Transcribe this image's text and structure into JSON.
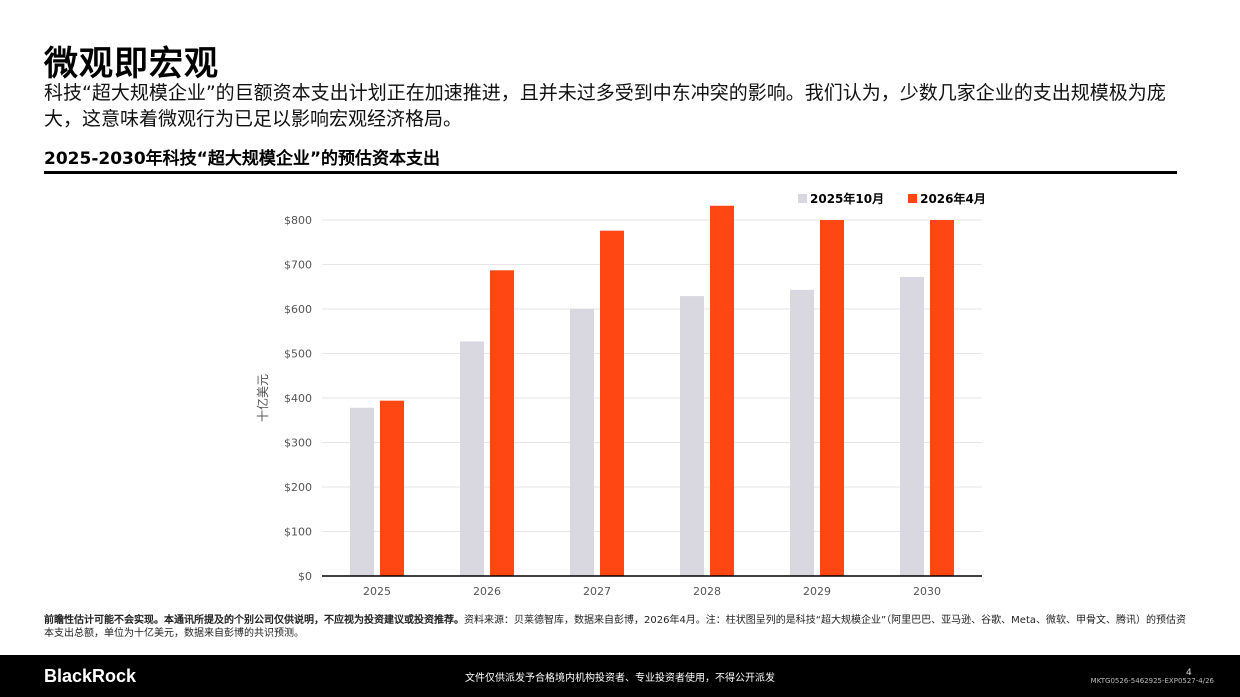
{
  "header": {
    "title": "微观即宏观",
    "lede": "科技“超大规模企业”的巨额资本支出计划正在加速推进，且并未过多受到中东冲突的影响。我们认为，少数几家企业的支出规模极为庞大，这意味着微观行为已足以影响宏观经济格局。",
    "chart_title": "2025-2030年科技“超大规模企业”的预估资本支出"
  },
  "colors": {
    "series_1": "#d9d7df",
    "series_2": "#ff4713",
    "axis": "#000000",
    "grid": "#e6e6e6",
    "tick_text": "#555555"
  },
  "chart_data": {
    "type": "bar",
    "categories": [
      "2025",
      "2026",
      "2027",
      "2028",
      "2029",
      "2030"
    ],
    "series": [
      {
        "name": "2025年10月",
        "values": [
          378,
          527,
          600,
          629,
          643,
          672
        ]
      },
      {
        "name": "2026年4月",
        "values": [
          394,
          687,
          776,
          832,
          800,
          800
        ]
      }
    ],
    "ylabel": "十亿美元",
    "ylim": [
      0,
      800
    ],
    "yticks": [
      0,
      100,
      200,
      300,
      400,
      500,
      600,
      700,
      800
    ],
    "ytick_labels": [
      "$0",
      "$100",
      "$200",
      "$300",
      "$400",
      "$500",
      "$600",
      "$700",
      "$800"
    ],
    "grid": true,
    "legend_position": "top-right"
  },
  "footnote": {
    "bold": "前瞻性估计可能不会实现。本通讯所提及的个别公司仅供说明，不应视为投资建议或投资推荐。",
    "text": "资料来源：贝莱德智库，数据来自彭博，2026年4月。注：柱状图呈列的是科技“超大规模企业”（阿里巴巴、亚马逊、谷歌、Meta、微软、甲骨文、腾讯）的预估资本支出总额，单位为十亿美元，数据来自彭博的共识预测。"
  },
  "footer": {
    "logo": "BlackRock",
    "disclaimer": "文件仅供派发予合格境内机构投资者、专业投资者使用，不得公开派发",
    "page_number": "4",
    "code": "MKTG0526-5462925-EXP0527-4/26"
  }
}
